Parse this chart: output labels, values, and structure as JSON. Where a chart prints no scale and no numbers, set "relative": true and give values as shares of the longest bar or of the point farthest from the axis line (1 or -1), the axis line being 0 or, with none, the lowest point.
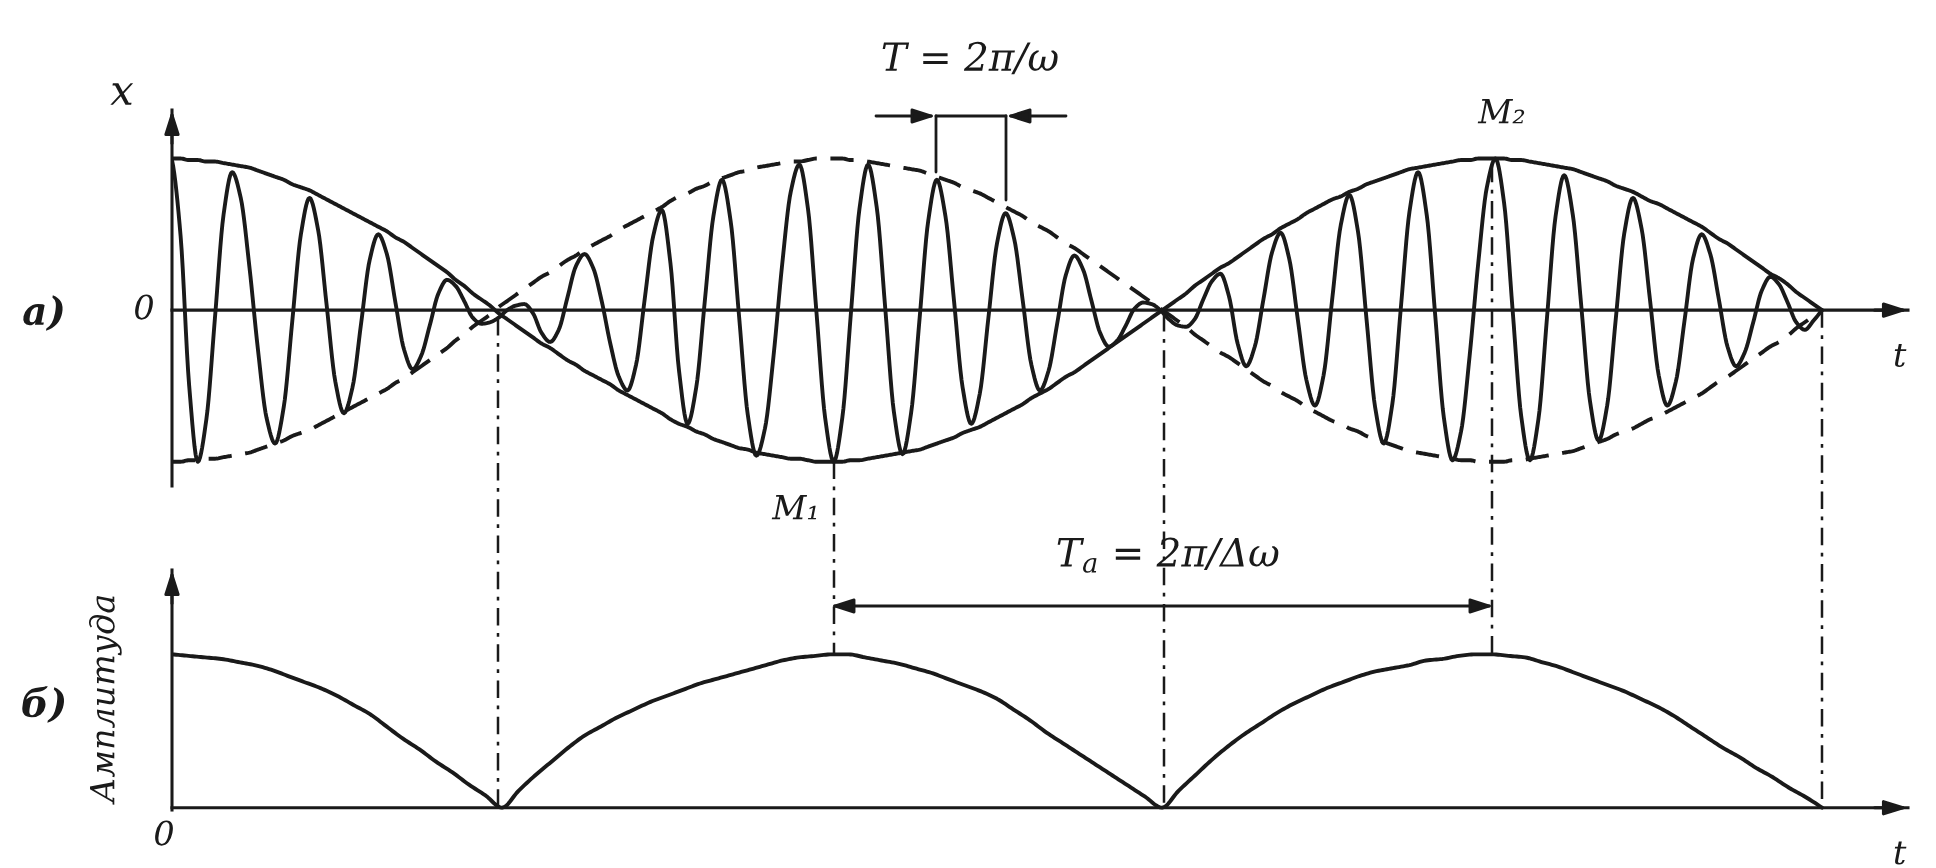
{
  "chart_data": [
    {
      "type": "line",
      "title": "а)",
      "xlabel": "t",
      "ylabel": "x",
      "relative": true,
      "categories": [
        null,
        null,
        null,
        null,
        null,
        null,
        null,
        null,
        null,
        null,
        null,
        null,
        null,
        null,
        null,
        null,
        null,
        null,
        null,
        null,
        null,
        null,
        null,
        null,
        null,
        null,
        null,
        null,
        null,
        null,
        null,
        null,
        null,
        null,
        null,
        null,
        null,
        null,
        null,
        null,
        null,
        null,
        null,
        null,
        null,
        null,
        null,
        null,
        null,
        null,
        null,
        null,
        null,
        null,
        null,
        null,
        null,
        null,
        null,
        null,
        null,
        null,
        null,
        null,
        null,
        null,
        null,
        null,
        null,
        null,
        null,
        null,
        null,
        null,
        null,
        null,
        null,
        null,
        null,
        null,
        null,
        null,
        null,
        null,
        null,
        null,
        null,
        null,
        null,
        null,
        null,
        null,
        null,
        null,
        null,
        null,
        null,
        null,
        null,
        null,
        null,
        null,
        null,
        null,
        null,
        null,
        null,
        null,
        null,
        null,
        null,
        null,
        null,
        null,
        null,
        null,
        null,
        null,
        null,
        null,
        null,
        null,
        null,
        null,
        null,
        null,
        null,
        null,
        null,
        null,
        null,
        null,
        null,
        null,
        null,
        null,
        null,
        null,
        null,
        null,
        null,
        null,
        null,
        null,
        null,
        null,
        null,
        null,
        null,
        null,
        null,
        null,
        null,
        null,
        null,
        null,
        null,
        null,
        null,
        null,
        null,
        null,
        null,
        null,
        null,
        null,
        null,
        null,
        null,
        null,
        null,
        null,
        null,
        null,
        null,
        null,
        null,
        null,
        null,
        null,
        null,
        null,
        null,
        null,
        null,
        null,
        null,
        null,
        null,
        null,
        null,
        null,
        null
      ],
      "series": [
        {
          "color": "#1a1a1a",
          "line_style": "solid",
          "values": [
            0.99,
            0.49,
            -0.5,
            -1.0,
            -0.72,
            -0.05,
            0.63,
            0.91,
            0.74,
            0.29,
            -0.26,
            -0.71,
            -0.88,
            -0.64,
            -0.07,
            0.5,
            0.74,
            0.53,
            0.03,
            -0.47,
            -0.68,
            -0.51,
            -0.09,
            0.33,
            0.5,
            0.37,
            0.05,
            -0.26,
            -0.39,
            -0.3,
            -0.1,
            0.11,
            0.2,
            0.16,
            0.06,
            -0.05,
            -0.09,
            -0.08,
            -0.05,
            0,
            0.03,
            0.04,
            -0.02,
            -0.15,
            -0.21,
            -0.13,
            0.08,
            0.29,
            0.37,
            0.28,
            0.06,
            -0.22,
            -0.44,
            -0.53,
            -0.36,
            0.07,
            0.49,
            0.66,
            0.31,
            -0.4,
            -0.75,
            -0.51,
            0.06,
            0.62,
            0.86,
            0.59,
            -0.05,
            -0.69,
            -0.96,
            -0.78,
            -0.3,
            0.3,
            0.78,
            0.96,
            0.67,
            -0.02,
            -0.71,
            -1.0,
            -0.71,
            -0.02,
            0.67,
            0.96,
            0.68,
            0.01,
            -0.67,
            -0.95,
            -0.68,
            -0.05,
            0.59,
            0.86,
            0.62,
            0.06,
            -0.51,
            -0.75,
            -0.55,
            -0.05,
            0.44,
            0.64,
            0.47,
            0.06,
            -0.36,
            -0.53,
            -0.4,
            -0.09,
            0.23,
            0.36,
            0.27,
            0.06,
            -0.15,
            -0.24,
            -0.2,
            -0.1,
            0.01,
            0.05,
            0.04,
            0,
            -0.06,
            -0.1,
            -0.11,
            -0.06,
            0.07,
            0.19,
            0.24,
            0.09,
            -0.22,
            -0.37,
            -0.24,
            0.07,
            0.38,
            0.51,
            0.34,
            -0.06,
            -0.46,
            -0.63,
            -0.43,
            0.07,
            0.56,
            0.76,
            0.52,
            -0.06,
            -0.64,
            -0.88,
            -0.62,
            0.02,
            0.65,
            0.91,
            0.63,
            -0.04,
            -0.71,
            -0.99,
            -0.8,
            -0.3,
            0.31,
            0.81,
            1.0,
            0.71,
            0,
            -0.7,
            -0.99,
            -0.72,
            -0.05,
            0.62,
            0.89,
            0.63,
            0.02,
            -0.6,
            -0.86,
            -0.63,
            -0.06,
            0.51,
            0.74,
            0.54,
            0.06,
            -0.43,
            -0.63,
            -0.47,
            -0.07,
            0.34,
            0.5,
            0.37,
            0.07,
            -0.24,
            -0.37,
            -0.28,
            -0.08,
            0.13,
            0.22,
            0.17,
            0.05,
            -0.08,
            -0.13,
            -0.07,
            0
          ]
        },
        {
          "color": "#1a1a1a",
          "line_style": "solid",
          "values": [
            1.0,
            1.0,
            0.99,
            0.99,
            0.98,
            0.98,
            0.97,
            0.96,
            0.95,
            0.94,
            0.92,
            0.9,
            0.88,
            0.86,
            0.83,
            0.81,
            0.79,
            0.76,
            0.73,
            0.7,
            0.67,
            0.64,
            0.61,
            0.58,
            0.55,
            0.52,
            0.48,
            0.45,
            0.41,
            0.37,
            0.33,
            0.29,
            0.25,
            0.2,
            0.16,
            0.11,
            0.07,
            0.03,
            -0.02,
            -0.06,
            -0.1,
            -0.14,
            -0.18,
            -0.22,
            -0.25,
            -0.29,
            -0.33,
            -0.36,
            -0.4,
            -0.43,
            -0.46,
            -0.49,
            -0.53,
            -0.56,
            -0.59,
            -0.62,
            -0.65,
            -0.68,
            -0.72,
            -0.75,
            -0.77,
            -0.8,
            -0.82,
            -0.85,
            -0.87,
            -0.89,
            -0.91,
            -0.92,
            -0.94,
            -0.95,
            -0.96,
            -0.97,
            -0.98,
            -0.98,
            -0.99,
            -1.0,
            -1.0,
            -1.0,
            -1.0,
            -0.99,
            -0.99,
            -0.98,
            -0.97,
            -0.96,
            -0.95,
            -0.94,
            -0.93,
            -0.92,
            -0.9,
            -0.88,
            -0.86,
            -0.84,
            -0.81,
            -0.79,
            -0.77,
            -0.74,
            -0.71,
            -0.68,
            -0.65,
            -0.62,
            -0.58,
            -0.55,
            -0.52,
            -0.48,
            -0.44,
            -0.41,
            -0.37,
            -0.33,
            -0.29,
            -0.25,
            -0.21,
            -0.17,
            -0.13,
            -0.09,
            -0.05,
            -0.01,
            0.03,
            0.07,
            0.11,
            0.16,
            0.2,
            0.24,
            0.28,
            0.31,
            0.35,
            0.39,
            0.43,
            0.47,
            0.5,
            0.54,
            0.57,
            0.6,
            0.64,
            0.67,
            0.7,
            0.73,
            0.75,
            0.78,
            0.8,
            0.83,
            0.85,
            0.87,
            0.89,
            0.91,
            0.93,
            0.94,
            0.95,
            0.96,
            0.97,
            0.98,
            0.99,
            0.99,
            1.0,
            1.0,
            1.0,
            1.0,
            0.99,
            0.99,
            0.98,
            0.97,
            0.96,
            0.95,
            0.94,
            0.93,
            0.91,
            0.89,
            0.87,
            0.85,
            0.82,
            0.8,
            0.78,
            0.75,
            0.72,
            0.7,
            0.67,
            0.64,
            0.61,
            0.58,
            0.55,
            0.51,
            0.47,
            0.44,
            0.4,
            0.36,
            0.32,
            0.28,
            0.24,
            0.21,
            0.17,
            0.12,
            0.08,
            0.04,
            0
          ]
        },
        {
          "color": "#1a1a1a",
          "line_style": "dashed",
          "values": [
            -1.0,
            -1.0,
            -0.99,
            -0.99,
            -0.98,
            -0.98,
            -0.97,
            -0.96,
            -0.95,
            -0.94,
            -0.92,
            -0.9,
            -0.88,
            -0.86,
            -0.83,
            -0.81,
            -0.79,
            -0.76,
            -0.73,
            -0.7,
            -0.67,
            -0.64,
            -0.61,
            -0.58,
            -0.55,
            -0.52,
            -0.48,
            -0.45,
            -0.41,
            -0.37,
            -0.33,
            -0.29,
            -0.25,
            -0.2,
            -0.16,
            -0.11,
            -0.07,
            -0.03,
            0.02,
            0.06,
            0.1,
            0.14,
            0.18,
            0.22,
            0.25,
            0.29,
            0.33,
            0.36,
            0.4,
            0.43,
            0.46,
            0.49,
            0.53,
            0.56,
            0.59,
            0.62,
            0.65,
            0.68,
            0.72,
            0.75,
            0.77,
            0.8,
            0.82,
            0.85,
            0.87,
            0.89,
            0.91,
            0.92,
            0.94,
            0.95,
            0.96,
            0.97,
            0.98,
            0.98,
            0.99,
            1.0,
            1.0,
            1.0,
            1.0,
            0.99,
            0.99,
            0.98,
            0.97,
            0.96,
            0.95,
            0.94,
            0.93,
            0.92,
            0.9,
            0.88,
            0.86,
            0.84,
            0.81,
            0.79,
            0.77,
            0.74,
            0.71,
            0.68,
            0.65,
            0.62,
            0.58,
            0.55,
            0.52,
            0.48,
            0.44,
            0.41,
            0.37,
            0.33,
            0.29,
            0.25,
            0.21,
            0.17,
            0.13,
            0.09,
            0.05,
            0.01,
            -0.03,
            -0.07,
            -0.11,
            -0.16,
            -0.2,
            -0.24,
            -0.28,
            -0.31,
            -0.35,
            -0.39,
            -0.43,
            -0.47,
            -0.5,
            -0.54,
            -0.57,
            -0.6,
            -0.64,
            -0.67,
            -0.7,
            -0.73,
            -0.75,
            -0.78,
            -0.8,
            -0.83,
            -0.85,
            -0.87,
            -0.89,
            -0.91,
            -0.93,
            -0.94,
            -0.95,
            -0.96,
            -0.97,
            -0.98,
            -0.99,
            -0.99,
            -1.0,
            -1.0,
            -1.0,
            -1.0,
            -0.99,
            -0.99,
            -0.98,
            -0.97,
            -0.96,
            -0.95,
            -0.94,
            -0.93,
            -0.91,
            -0.89,
            -0.87,
            -0.85,
            -0.82,
            -0.8,
            -0.78,
            -0.75,
            -0.72,
            -0.7,
            -0.67,
            -0.64,
            -0.61,
            -0.58,
            -0.55,
            -0.51,
            -0.47,
            -0.44,
            -0.4,
            -0.36,
            -0.32,
            -0.28,
            -0.24,
            -0.21,
            -0.17,
            -0.12,
            -0.08,
            -0.04,
            0
          ]
        }
      ],
      "annotations": [
        "0",
        "M₁",
        "M₂",
        "T = 2π/ω"
      ]
    },
    {
      "type": "line",
      "title": "б)",
      "xlabel": "t",
      "ylabel": "Амплитуда",
      "relative": true,
      "categories": [
        null,
        null,
        null,
        null,
        null,
        null,
        null,
        null,
        null,
        null,
        null,
        null,
        null,
        null,
        null,
        null,
        null,
        null,
        null,
        null,
        null,
        null,
        null,
        null,
        null,
        null,
        null,
        null,
        null,
        null,
        null,
        null,
        null,
        null,
        null,
        null,
        null,
        null,
        null,
        null,
        null,
        null,
        null,
        null,
        null,
        null,
        null,
        null,
        null,
        null,
        null,
        null,
        null,
        null,
        null,
        null,
        null,
        null,
        null,
        null,
        null,
        null,
        null,
        null,
        null,
        null,
        null,
        null,
        null,
        null,
        null,
        null,
        null,
        null,
        null,
        null,
        null,
        null,
        null,
        null,
        null,
        null,
        null,
        null,
        null,
        null,
        null,
        null,
        null,
        null,
        null,
        null,
        null,
        null,
        null,
        null,
        null,
        null,
        null,
        null,
        null
      ],
      "series": [
        {
          "color": "#1a1a1a",
          "line_style": "solid",
          "values": [
            1.0,
            0.99,
            0.98,
            0.97,
            0.95,
            0.93,
            0.9,
            0.86,
            0.82,
            0.78,
            0.73,
            0.67,
            0.61,
            0.53,
            0.45,
            0.38,
            0.3,
            0.23,
            0.15,
            0.08,
            0,
            0.11,
            0.21,
            0.3,
            0.39,
            0.47,
            0.53,
            0.59,
            0.64,
            0.69,
            0.73,
            0.77,
            0.81,
            0.84,
            0.87,
            0.9,
            0.93,
            0.96,
            0.98,
            0.99,
            1.0,
            1.0,
            0.98,
            0.96,
            0.94,
            0.91,
            0.88,
            0.84,
            0.8,
            0.76,
            0.71,
            0.64,
            0.57,
            0.49,
            0.42,
            0.35,
            0.28,
            0.21,
            0.14,
            0.07,
            0,
            0.11,
            0.21,
            0.31,
            0.4,
            0.48,
            0.55,
            0.62,
            0.68,
            0.73,
            0.78,
            0.82,
            0.86,
            0.89,
            0.91,
            0.93,
            0.96,
            0.97,
            0.99,
            1.0,
            1.0,
            0.99,
            0.98,
            0.95,
            0.92,
            0.88,
            0.84,
            0.8,
            0.76,
            0.71,
            0.66,
            0.6,
            0.53,
            0.46,
            0.39,
            0.33,
            0.26,
            0.2,
            0.13,
            0.07,
            0
          ]
        }
      ],
      "annotations": [
        "0",
        "T$_{a}$ = 2π/Δω"
      ]
    }
  ]
}
